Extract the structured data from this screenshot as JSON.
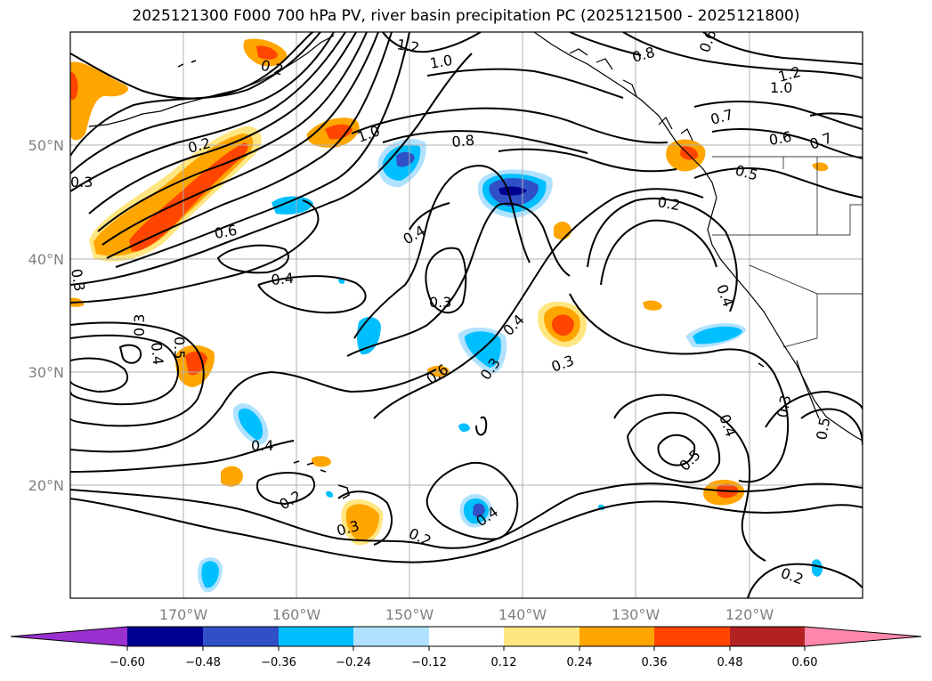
{
  "title": "2025121300 F000 700 hPa PV, river basin precipitation PC (2025121500 - 2025121800)",
  "colors": {
    "neg_extend": "#9b30d0",
    "neg": [
      "#000090",
      "#3050c8",
      "#00bfff",
      "#b0e2ff"
    ],
    "zero": "#ffffff",
    "pos": [
      "#ffe680",
      "#ffa500",
      "#ff4500",
      "#b22222"
    ],
    "pos_extend": "#ff88aa",
    "contour": "#000000",
    "grid": "#b0b0b0",
    "coast": "#000000"
  },
  "lat_labels": [
    "50°N",
    "40°N",
    "30°N",
    "20°N"
  ],
  "lon_labels": [
    "170°W",
    "160°W",
    "150°W",
    "140°W",
    "130°W",
    "120°W"
  ],
  "colorbar": {
    "ticks": [
      "−0.60",
      "−0.48",
      "−0.36",
      "−0.24",
      "−0.12",
      "0.12",
      "0.24",
      "0.36",
      "0.48",
      "0.60"
    ]
  },
  "contour_labels": [
    "0.2",
    "1.0",
    "0.6",
    "0.8",
    "0.2",
    "1.2",
    "1.0",
    "0.7",
    "0.6",
    "0.5",
    "0.7",
    "0.2",
    "0.4",
    "1.0",
    "0.8",
    "1.2",
    "0.4",
    "0.3",
    "0.6",
    "0.4",
    "0.3",
    "0.3",
    "0.6",
    "0.3",
    "0.4",
    "0.5",
    "0.4",
    "0.5",
    "0.3",
    "0.4",
    "0.2",
    "0.2",
    "0.3",
    "0.4",
    "0.2",
    "0.2",
    "0.4",
    "0.3",
    "0.3",
    "0.5"
  ],
  "map": {
    "projection": "PlateCarree",
    "lon_range": [
      -180,
      -110
    ],
    "lat_range": [
      10,
      60
    ],
    "grid_lon": [
      -170,
      -160,
      -150,
      -140,
      -130,
      -120
    ],
    "grid_lat": [
      20,
      30,
      40,
      50
    ]
  }
}
